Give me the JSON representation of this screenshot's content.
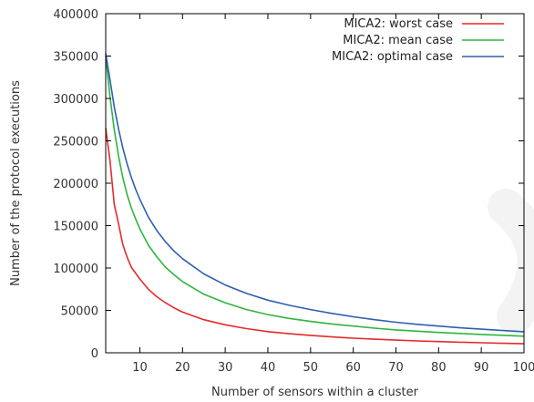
{
  "chart_data": {
    "type": "line",
    "xlabel": "Number of sensors within a cluster",
    "ylabel": "Number of the protocol executions",
    "xlim": [
      2,
      100
    ],
    "ylim": [
      0,
      400000
    ],
    "xticks": [
      "10",
      "20",
      "30",
      "40",
      "50",
      "60",
      "70",
      "80",
      "90",
      "100"
    ],
    "yticks": [
      "0",
      "50000",
      "100000",
      "150000",
      "200000",
      "250000",
      "300000",
      "350000",
      "400000"
    ],
    "grid": false,
    "legend_position": "top-right",
    "series": [
      {
        "name": "MICA2: worst case",
        "color": "#e32b2b",
        "x": [
          2,
          3,
          4,
          5,
          6,
          7,
          8,
          9,
          10,
          12,
          14,
          16,
          18,
          20,
          25,
          30,
          35,
          40,
          45,
          50,
          55,
          60,
          65,
          70,
          75,
          80,
          85,
          90,
          95,
          100
        ],
        "y": [
          265000,
          227000,
          175000,
          152000,
          128000,
          113000,
          101000,
          94000,
          87000,
          75000,
          66000,
          59000,
          53000,
          48000,
          39000,
          33000,
          28500,
          25000,
          22500,
          20500,
          18700,
          17200,
          16000,
          15000,
          14000,
          13200,
          12500,
          11800,
          11200,
          10600
        ]
      },
      {
        "name": "MICA2: mean case",
        "color": "#2fb53c",
        "x": [
          2,
          3,
          4,
          5,
          6,
          7,
          8,
          9,
          10,
          12,
          14,
          16,
          18,
          20,
          25,
          30,
          35,
          40,
          45,
          50,
          55,
          60,
          65,
          70,
          75,
          80,
          85,
          90,
          95,
          100
        ],
        "y": [
          350000,
          302000,
          263000,
          232000,
          207000,
          187000,
          171000,
          158000,
          146000,
          127000,
          113000,
          101000,
          92000,
          84000,
          69000,
          59000,
          51000,
          45000,
          40500,
          37000,
          34000,
          31500,
          29000,
          27000,
          25500,
          24000,
          22800,
          21600,
          20600,
          19600
        ]
      },
      {
        "name": "MICA2: optimal case",
        "color": "#2f5fb0",
        "x": [
          2,
          3,
          4,
          5,
          6,
          7,
          8,
          9,
          10,
          12,
          14,
          16,
          18,
          20,
          25,
          30,
          35,
          40,
          45,
          50,
          55,
          60,
          65,
          70,
          75,
          80,
          85,
          90,
          95,
          100
        ],
        "y": [
          353000,
          322000,
          290000,
          264000,
          242000,
          223000,
          207000,
          193000,
          181000,
          160000,
          144000,
          131000,
          120000,
          111000,
          93000,
          80000,
          70000,
          62000,
          56000,
          51000,
          46500,
          42500,
          39000,
          36000,
          33500,
          31500,
          29500,
          27800,
          26200,
          24800
        ]
      }
    ]
  }
}
